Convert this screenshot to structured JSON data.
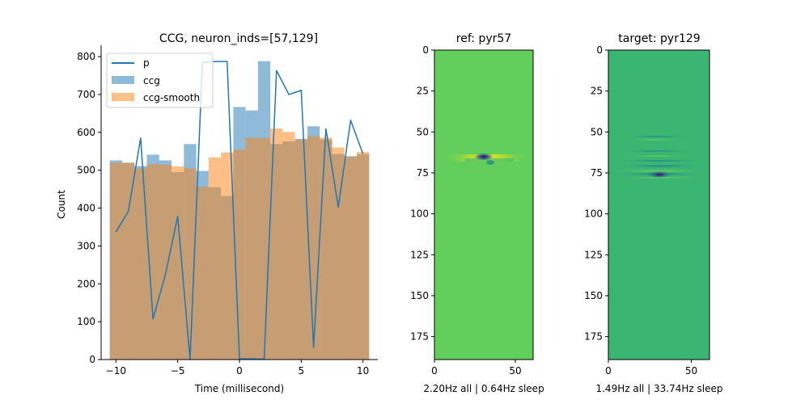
{
  "chart_data": [
    {
      "type": "bar",
      "title": "CCG, neuron_inds=[57,129]",
      "xlabel": "Time (millisecond)",
      "ylabel": "Count",
      "xlim": [
        -11.2,
        11.2
      ],
      "ylim": [
        0,
        830
      ],
      "xticks": [
        -10,
        -5,
        0,
        5,
        10
      ],
      "yticks": [
        0,
        100,
        200,
        300,
        400,
        500,
        600,
        700,
        800
      ],
      "legend_position": "upper-left",
      "bin_width": 1,
      "bin_centers": [
        -10,
        -9,
        -8,
        -7,
        -6,
        -5,
        -4,
        -3,
        -2,
        -1,
        0,
        1,
        2,
        3,
        4,
        5,
        6,
        7,
        8,
        9,
        10
      ],
      "series": [
        {
          "name": "p",
          "kind": "line",
          "color": "#1f77b4",
          "x": [
            -10,
            -9,
            -8,
            -7,
            -6,
            -5,
            -4,
            -3,
            -2,
            -1,
            0,
            1,
            2,
            3,
            4,
            5,
            6,
            7,
            8,
            9,
            10
          ],
          "values": [
            337,
            391,
            585,
            107,
            224,
            378,
            0,
            784,
            787,
            787,
            2,
            2,
            1,
            763,
            700,
            711,
            32,
            609,
            403,
            632,
            543
          ]
        },
        {
          "name": "ccg",
          "kind": "bar",
          "color": "#1f77b4",
          "alpha": 0.5,
          "values": [
            526,
            520,
            511,
            541,
            526,
            495,
            569,
            498,
            455,
            432,
            667,
            658,
            788,
            569,
            576,
            583,
            616,
            581,
            543,
            537,
            542
          ]
        },
        {
          "name": "ccg-smooth",
          "kind": "bar",
          "color": "#ff7f0e",
          "alpha": 0.5,
          "values": [
            520,
            519,
            505,
            516,
            515,
            510,
            505,
            456,
            534,
            547,
            554,
            586,
            585,
            610,
            601,
            580,
            590,
            586,
            560,
            535,
            548
          ]
        }
      ]
    },
    {
      "type": "heatmap",
      "title": "ref: pyr57",
      "xlabel": "2.20Hz all | 0.64Hz sleep",
      "xlim": [
        0,
        61
      ],
      "ylim": [
        189,
        0
      ],
      "xticks": [
        0,
        50
      ],
      "yticks": [
        0,
        25,
        50,
        75,
        100,
        125,
        150,
        175
      ],
      "background_color": "#62ce5b",
      "features": "thin horizontal waveform band near row 66 centred at column ~30; dark blue core with yellow lobes"
    },
    {
      "type": "heatmap",
      "title": "target: pyr129",
      "xlabel": "1.49Hz all | 33.74Hz sleep",
      "xlim": [
        0,
        61
      ],
      "ylim": [
        189,
        0
      ],
      "xticks": [
        0,
        50
      ],
      "yticks": [
        0,
        25,
        50,
        75,
        100,
        125,
        150,
        175
      ],
      "background_color": "#3bb572",
      "features": "striped horizontal bands between rows 52 and 80 centred at column ~30; dark core near row 77"
    }
  ]
}
